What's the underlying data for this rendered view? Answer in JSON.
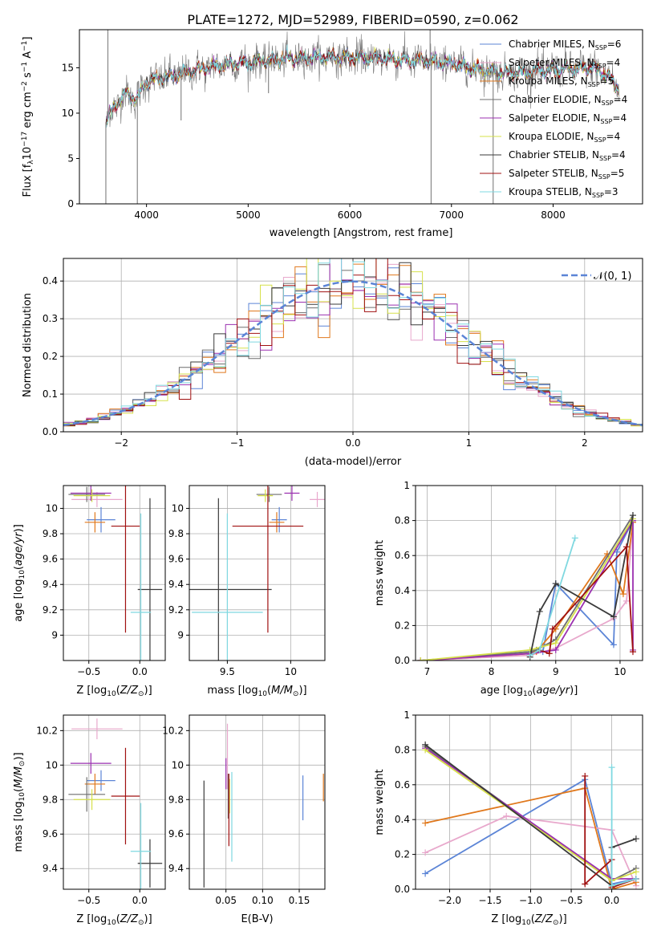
{
  "colors": {
    "chabrier_miles": "#5b84d6",
    "salpeter_miles": "#e8a8cc",
    "kroupa_miles": "#e0781c",
    "chabrier_elodie": "#6e6e6e",
    "salpeter_elodie": "#9b30b0",
    "kroupa_elodie": "#d6e04a",
    "chabrier_stelib": "#3a3a3a",
    "salpeter_stelib": "#a01010",
    "kroupa_stelib": "#7fd8e0",
    "normal": "#5b84d6"
  },
  "chart_data": [
    {
      "id": "spectrum",
      "type": "line",
      "title": "PLATE=1272, MJD=52989, FIBERID=0590, z=0.062",
      "xlabel": "wavelength [Angstrom, rest frame]",
      "ylabel_prefix": "Flux [f",
      "ylabel_sub": "λ",
      "ylabel_mid": "10",
      "ylabel_sup1": "−17",
      "ylabel_tail": " erg cm",
      "ylabel_sup2": "−2",
      "ylabel_tail2": " s",
      "ylabel_sup3": "−1",
      "ylabel_tail3": " A",
      "ylabel_sup4": "−1",
      "ylabel_end": "]",
      "xlim": [
        3340,
        8880
      ],
      "ylim": [
        0,
        19.2
      ],
      "xticks": [
        4000,
        5000,
        6000,
        7000,
        8000
      ],
      "yticks": [
        0,
        5,
        10,
        15
      ],
      "legend": [
        {
          "name": "Chabrier MILES",
          "n": "6",
          "color": "chabrier_miles"
        },
        {
          "name": "Salpeter MILES",
          "n": "4",
          "color": "salpeter_miles"
        },
        {
          "name": "Kroupa MILES",
          "n": "5",
          "color": "kroupa_miles"
        },
        {
          "name": "Chabrier ELODIE",
          "n": "4",
          "color": "chabrier_elodie"
        },
        {
          "name": "Salpeter ELODIE",
          "n": "4",
          "color": "salpeter_elodie"
        },
        {
          "name": "Kroupa ELODIE",
          "n": "4",
          "color": "kroupa_elodie"
        },
        {
          "name": "Chabrier STELIB",
          "n": "4",
          "color": "chabrier_stelib"
        },
        {
          "name": "Salpeter STELIB",
          "n": "5",
          "color": "salpeter_stelib"
        },
        {
          "name": "Kroupa STELIB",
          "n": "3",
          "color": "kroupa_stelib"
        }
      ],
      "legend_label": "N",
      "legend_sub": "SSP",
      "continuum": [
        [
          3600,
          9.0
        ],
        [
          3700,
          11.0
        ],
        [
          3800,
          12.2
        ],
        [
          3900,
          11.5
        ],
        [
          4000,
          13.5
        ],
        [
          4200,
          14.0
        ],
        [
          4400,
          14.5
        ],
        [
          4600,
          15.0
        ],
        [
          4800,
          15.4
        ],
        [
          5000,
          15.6
        ],
        [
          5200,
          15.8
        ],
        [
          5400,
          16.0
        ],
        [
          5600,
          16.1
        ],
        [
          5800,
          16.2
        ],
        [
          6000,
          16.1
        ],
        [
          6200,
          16.1
        ],
        [
          6400,
          16.0
        ],
        [
          6600,
          15.8
        ],
        [
          6800,
          15.7
        ],
        [
          7000,
          15.5
        ],
        [
          7200,
          15.0
        ],
        [
          7400,
          14.6
        ],
        [
          7600,
          14.4
        ],
        [
          7800,
          14.6
        ],
        [
          8000,
          14.8
        ],
        [
          8200,
          14.9
        ],
        [
          8400,
          15.0
        ],
        [
          8550,
          14.0
        ],
        [
          8650,
          12.5
        ]
      ],
      "spikes": [
        [
          3600,
          0
        ],
        [
          3910,
          0
        ],
        [
          4340,
          9.2
        ],
        [
          5200,
          12.2
        ],
        [
          6800,
          0
        ],
        [
          7410,
          0
        ],
        [
          3620,
          19.2
        ],
        [
          6790,
          19.2
        ]
      ]
    },
    {
      "id": "residuals",
      "type": "histogram",
      "xlabel": "(data-model)/error",
      "ylabel": "Normed distribution",
      "xlim": [
        -2.5,
        2.5
      ],
      "ylim": [
        0,
        0.46
      ],
      "xticks": [
        -2,
        -1,
        0,
        1,
        2
      ],
      "yticks": [
        0.0,
        0.1,
        0.2,
        0.3,
        0.4
      ],
      "legend": "𝒩(0, 1)",
      "bin_edges_start": -2.5,
      "bin_width": 0.1
    },
    {
      "id": "age_vs_Z",
      "type": "errorbar",
      "xlabel": "Z [log",
      "ylabel": "age  [log",
      "xlim": [
        -0.75,
        0.25
      ],
      "ylim": [
        8.8,
        10.18
      ],
      "xticks": [
        -0.5,
        0.0
      ],
      "yticks": [
        9.0,
        9.2,
        9.4,
        9.6,
        9.8,
        10.0
      ],
      "points": [
        {
          "c": "chabrier_miles",
          "x": -0.38,
          "xe": 0.14,
          "y": 9.91,
          "ye": 0.1
        },
        {
          "c": "salpeter_miles",
          "x": -0.42,
          "xe": 0.25,
          "y": 10.07,
          "ye": 0.06
        },
        {
          "c": "kroupa_miles",
          "x": -0.44,
          "xe": 0.1,
          "y": 9.89,
          "ye": 0.08
        },
        {
          "c": "chabrier_elodie",
          "x": -0.52,
          "xe": 0.18,
          "y": 10.11,
          "ye": 0.06
        },
        {
          "c": "salpeter_elodie",
          "x": -0.48,
          "xe": 0.2,
          "y": 10.12,
          "ye": 0.06
        },
        {
          "c": "kroupa_elodie",
          "x": -0.47,
          "xe": 0.18,
          "y": 10.1,
          "ye": 0.05
        },
        {
          "c": "chabrier_stelib",
          "x": 0.1,
          "xe": 0.12,
          "y": 9.36,
          "ye": 0.72
        },
        {
          "c": "salpeter_stelib",
          "x": -0.14,
          "xe": 0.14,
          "y": 9.86,
          "ye": 0.84
        },
        {
          "c": "kroupa_stelib",
          "x": 0.01,
          "xe": 0.1,
          "y": 9.18,
          "ye": 0.78
        }
      ]
    },
    {
      "id": "age_vs_mass",
      "type": "errorbar",
      "xlabel": "mass [log",
      "xlim": [
        9.2,
        10.27
      ],
      "ylim": [
        8.8,
        10.18
      ],
      "xticks": [
        9.5,
        10.0
      ],
      "yticks": [
        9.0,
        9.2,
        9.4,
        9.6,
        9.8,
        10.0
      ],
      "points": [
        {
          "c": "chabrier_miles",
          "x": 9.91,
          "xe": 0.06,
          "y": 9.91,
          "ye": 0.1
        },
        {
          "c": "salpeter_miles",
          "x": 10.21,
          "xe": 0.06,
          "y": 10.07,
          "ye": 0.06
        },
        {
          "c": "kroupa_miles",
          "x": 9.89,
          "xe": 0.06,
          "y": 9.89,
          "ye": 0.08
        },
        {
          "c": "chabrier_elodie",
          "x": 9.83,
          "xe": 0.1,
          "y": 10.11,
          "ye": 0.06
        },
        {
          "c": "salpeter_elodie",
          "x": 10.01,
          "xe": 0.06,
          "y": 10.12,
          "ye": 0.06
        },
        {
          "c": "kroupa_elodie",
          "x": 9.8,
          "xe": 0.06,
          "y": 10.1,
          "ye": 0.05
        },
        {
          "c": "chabrier_stelib",
          "x": 9.43,
          "xe": 0.42,
          "y": 9.36,
          "ye": 0.72
        },
        {
          "c": "salpeter_stelib",
          "x": 9.82,
          "xe": 0.28,
          "y": 9.86,
          "ye": 0.84
        },
        {
          "c": "kroupa_stelib",
          "x": 9.5,
          "xe": 0.28,
          "y": 9.18,
          "ye": 0.78
        }
      ]
    },
    {
      "id": "weight_vs_age",
      "type": "line",
      "xlabel": "age  [log",
      "ylabel": "mass weight",
      "xlim": [
        6.82,
        10.35
      ],
      "ylim": [
        0,
        1.0
      ],
      "xticks": [
        7,
        8,
        9,
        10
      ],
      "yticks": [
        0.0,
        0.2,
        0.4,
        0.6,
        0.8,
        1.0
      ],
      "series": [
        {
          "c": "chabrier_miles",
          "x": [
            6.9,
            8.6,
            8.8,
            9.0,
            9.9,
            9.95,
            10.2
          ],
          "y": [
            0.0,
            0.05,
            0.05,
            0.44,
            0.09,
            0.62,
            0.8
          ]
        },
        {
          "c": "salpeter_miles",
          "x": [
            6.9,
            8.6,
            9.0,
            9.9,
            10.1,
            10.2
          ],
          "y": [
            0.0,
            0.03,
            0.07,
            0.24,
            0.34,
            0.79
          ]
        },
        {
          "c": "kroupa_miles",
          "x": [
            6.9,
            8.6,
            8.7,
            9.0,
            9.8,
            10.05,
            10.2
          ],
          "y": [
            0.0,
            0.04,
            0.05,
            0.18,
            0.61,
            0.38,
            0.79
          ]
        },
        {
          "c": "chabrier_elodie",
          "x": [
            6.9,
            8.6,
            8.7,
            9.0,
            10.2
          ],
          "y": [
            0.0,
            0.05,
            0.06,
            0.12,
            0.83
          ]
        },
        {
          "c": "salpeter_elodie",
          "x": [
            6.9,
            8.6,
            9.0,
            10.2,
            10.2
          ],
          "y": [
            0.0,
            0.04,
            0.06,
            0.8,
            0.06
          ]
        },
        {
          "c": "kroupa_elodie",
          "x": [
            6.9,
            8.6,
            9.0,
            10.2
          ],
          "y": [
            0.0,
            0.06,
            0.1,
            0.81
          ]
        },
        {
          "c": "chabrier_stelib",
          "x": [
            8.6,
            8.75,
            9.0,
            9.9,
            10.2
          ],
          "y": [
            0.02,
            0.28,
            0.44,
            0.25,
            0.83
          ]
        },
        {
          "c": "salpeter_stelib",
          "x": [
            8.6,
            8.75,
            8.9,
            8.95,
            10.1,
            10.2
          ],
          "y": [
            0.03,
            0.06,
            0.04,
            0.18,
            0.65,
            0.05
          ]
        },
        {
          "c": "kroupa_stelib",
          "x": [
            8.6,
            8.75,
            9.3
          ],
          "y": [
            0.03,
            0.06,
            0.7
          ]
        }
      ]
    },
    {
      "id": "mass_vs_Z",
      "type": "errorbar",
      "xlabel": "Z [log",
      "ylabel": "mass [log",
      "xlim": [
        -0.75,
        0.25
      ],
      "ylim": [
        9.28,
        10.29
      ],
      "xticks": [
        -0.5,
        0.0
      ],
      "yticks": [
        9.4,
        9.6,
        9.8,
        10.0,
        10.2
      ],
      "points": [
        {
          "c": "chabrier_miles",
          "x": -0.38,
          "xe": 0.14,
          "y": 9.91,
          "ye": 0.06
        },
        {
          "c": "salpeter_miles",
          "x": -0.42,
          "xe": 0.25,
          "y": 10.21,
          "ye": 0.06
        },
        {
          "c": "kroupa_miles",
          "x": -0.44,
          "xe": 0.1,
          "y": 9.89,
          "ye": 0.06
        },
        {
          "c": "chabrier_elodie",
          "x": -0.52,
          "xe": 0.18,
          "y": 9.83,
          "ye": 0.1
        },
        {
          "c": "salpeter_elodie",
          "x": -0.48,
          "xe": 0.2,
          "y": 10.01,
          "ye": 0.06
        },
        {
          "c": "kroupa_elodie",
          "x": -0.47,
          "xe": 0.18,
          "y": 9.8,
          "ye": 0.06
        },
        {
          "c": "chabrier_stelib",
          "x": 0.1,
          "xe": 0.12,
          "y": 9.43,
          "ye": 0.14
        },
        {
          "c": "salpeter_stelib",
          "x": -0.14,
          "xe": 0.14,
          "y": 9.82,
          "ye": 0.28
        },
        {
          "c": "kroupa_stelib",
          "x": 0.01,
          "xe": 0.1,
          "y": 9.5,
          "ye": 0.28
        }
      ]
    },
    {
      "id": "mass_vs_ebv",
      "type": "errorbar",
      "xlabel": "E(B-V)",
      "xlim": [
        0.0,
        0.185
      ],
      "ylim": [
        9.28,
        10.29
      ],
      "xticks": [
        0.05,
        0.1,
        0.15
      ],
      "xticklabels": [
        "0.05",
        "0.10",
        "0.15"
      ],
      "yticks": [
        9.4,
        9.6,
        9.8,
        10.0,
        10.2
      ],
      "points": [
        {
          "c": "chabrier_miles",
          "x": 0.155,
          "y": 9.81,
          "ye": 0.13
        },
        {
          "c": "salpeter_miles",
          "x": 0.052,
          "y": 10.05,
          "ye": 0.19
        },
        {
          "c": "kroupa_miles",
          "x": 0.183,
          "y": 9.87,
          "ye": 0.08
        },
        {
          "c": "chabrier_elodie",
          "x": 0.053,
          "y": 9.82,
          "ye": 0.13
        },
        {
          "c": "salpeter_elodie",
          "x": 0.05,
          "y": 9.95,
          "ye": 0.09
        },
        {
          "c": "kroupa_elodie",
          "x": 0.055,
          "y": 9.82,
          "ye": 0.1
        },
        {
          "c": "chabrier_stelib",
          "x": 0.02,
          "y": 9.6,
          "ye": 0.31
        },
        {
          "c": "salpeter_stelib",
          "x": 0.054,
          "y": 9.74,
          "ye": 0.21
        },
        {
          "c": "kroupa_stelib",
          "x": 0.058,
          "y": 9.7,
          "ye": 0.26
        }
      ]
    },
    {
      "id": "weight_vs_Z",
      "type": "line",
      "xlabel": "Z [log",
      "ylabel": "mass weight",
      "xlim": [
        -2.42,
        0.38
      ],
      "ylim": [
        0,
        1.0
      ],
      "xticks": [
        -2.0,
        -1.5,
        -1.0,
        -0.5,
        0.0
      ],
      "xticklabels": [
        "−2.0",
        "−1.5",
        "−1.0",
        "−0.5",
        "0.0"
      ],
      "yticks": [
        0.0,
        0.2,
        0.4,
        0.6,
        0.8,
        1.0
      ],
      "series": [
        {
          "c": "chabrier_miles",
          "x": [
            -2.3,
            -0.33,
            0.0,
            0.3
          ],
          "y": [
            0.09,
            0.63,
            0.03,
            0.06
          ]
        },
        {
          "c": "salpeter_miles",
          "x": [
            -2.3,
            -1.3,
            0.0,
            0.3
          ],
          "y": [
            0.21,
            0.42,
            0.34,
            0.02
          ]
        },
        {
          "c": "kroupa_miles",
          "x": [
            -2.3,
            -0.33,
            0.0,
            0.3
          ],
          "y": [
            0.38,
            0.58,
            0.0,
            0.04
          ]
        },
        {
          "c": "chabrier_elodie",
          "x": [
            -2.3,
            0.0,
            0.3
          ],
          "y": [
            0.82,
            0.05,
            0.12
          ]
        },
        {
          "c": "salpeter_elodie",
          "x": [
            -2.3,
            0.0,
            0.3
          ],
          "y": [
            0.81,
            0.06,
            0.06
          ]
        },
        {
          "c": "kroupa_elodie",
          "x": [
            -2.3,
            0.0,
            0.3
          ],
          "y": [
            0.8,
            0.05,
            0.1
          ]
        },
        {
          "c": "chabrier_stelib",
          "x": [
            -2.3,
            0.0,
            0.0,
            0.3
          ],
          "y": [
            0.83,
            0.02,
            0.24,
            0.29
          ]
        },
        {
          "c": "salpeter_stelib",
          "x": [
            -0.33,
            -0.33,
            0.0,
            0.0,
            0.3
          ],
          "y": [
            0.65,
            0.03,
            0.17,
            0.01,
            0.06
          ]
        },
        {
          "c": "kroupa_stelib",
          "x": [
            0.0,
            0.0,
            0.3
          ],
          "y": [
            0.7,
            0.02,
            0.06
          ]
        }
      ]
    }
  ]
}
